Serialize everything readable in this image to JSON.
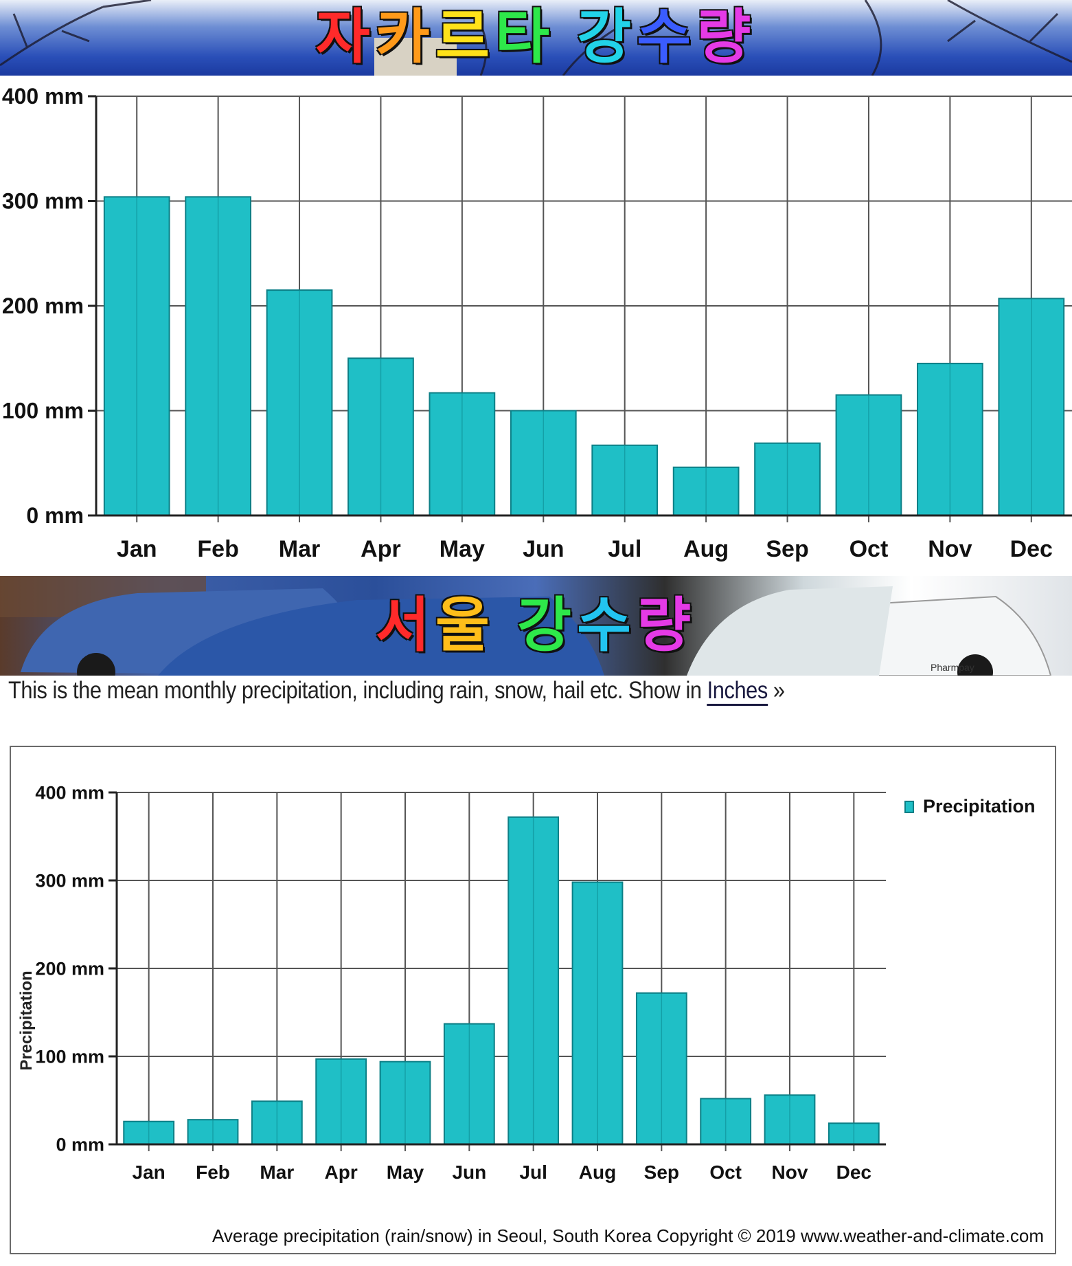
{
  "banner_top": {
    "title_chars": [
      {
        "ch": "자",
        "color": "#ff2a2a"
      },
      {
        "ch": "카",
        "color": "#ff9a1a"
      },
      {
        "ch": "르",
        "color": "#ffe21a"
      },
      {
        "ch": "타",
        "color": "#2ee84a"
      },
      {
        "ch": " ",
        "color": "#ffffff"
      },
      {
        "ch": "강",
        "color": "#22d3e8"
      },
      {
        "ch": "수",
        "color": "#3a5cff"
      },
      {
        "ch": "량",
        "color": "#e53ae6"
      }
    ]
  },
  "banner_mid": {
    "title_chars": [
      {
        "ch": "서",
        "color": "#ff2a2a"
      },
      {
        "ch": "울",
        "color": "#ffbe1a"
      },
      {
        "ch": " ",
        "color": "#ffffff"
      },
      {
        "ch": "강",
        "color": "#2ee84a"
      },
      {
        "ch": "수",
        "color": "#22c4f0"
      },
      {
        "ch": "량",
        "color": "#e53ae6"
      }
    ],
    "car_text": "Pharmpay"
  },
  "description": {
    "text": "This is the mean monthly precipitation, including rain, snow, hail etc. Show in",
    "link": "Inches",
    "suffix": " »"
  },
  "colors": {
    "bar": "#1fbfc6",
    "bar_edge": "#0c7f86",
    "grid": "#555555",
    "axis": "#222222"
  },
  "chart_data": [
    {
      "type": "bar",
      "title": "자카르타 강수량",
      "categories": [
        "Jan",
        "Feb",
        "Mar",
        "Apr",
        "May",
        "Jun",
        "Jul",
        "Aug",
        "Sep",
        "Oct",
        "Nov",
        "Dec"
      ],
      "values": [
        304,
        304,
        215,
        150,
        117,
        100,
        67,
        46,
        69,
        115,
        145,
        207
      ],
      "y_ticks": [
        "0 mm",
        "100 mm",
        "200 mm",
        "300 mm",
        "400 mm"
      ],
      "ylim": [
        0,
        400
      ],
      "grid": true
    },
    {
      "type": "bar",
      "title": "서울 강수량",
      "categories": [
        "Jan",
        "Feb",
        "Mar",
        "Apr",
        "May",
        "Jun",
        "Jul",
        "Aug",
        "Sep",
        "Oct",
        "Nov",
        "Dec"
      ],
      "series": [
        {
          "name": "Precipitation",
          "values": [
            26,
            28,
            49,
            97,
            94,
            137,
            372,
            298,
            172,
            52,
            56,
            24
          ]
        }
      ],
      "y_ticks": [
        "0 mm",
        "100 mm",
        "200 mm",
        "300 mm",
        "400 mm"
      ],
      "ylabel": "Precipitation",
      "ylim": [
        0,
        400
      ],
      "grid": true,
      "legend_position": "top-right",
      "footer": "Average precipitation (rain/snow) in Seoul, South Korea   Copyright © 2019 www.weather-and-climate.com"
    }
  ]
}
